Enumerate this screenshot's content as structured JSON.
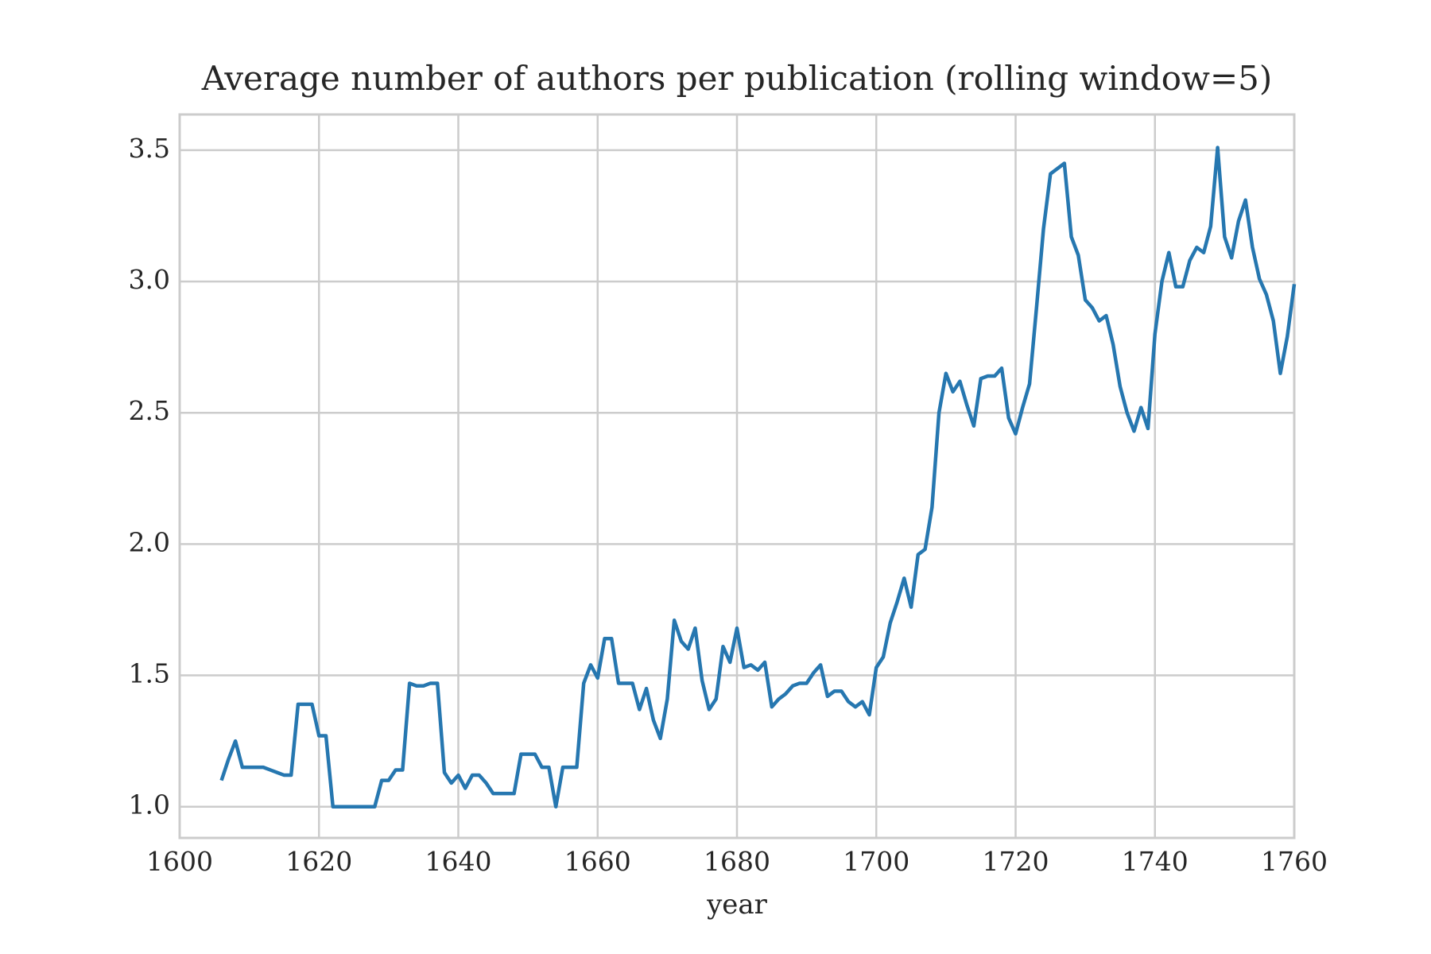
{
  "chart_data": {
    "type": "line",
    "title": "Average number of authors per publication (rolling window=5)",
    "x_label": "year",
    "x": [
      1606,
      1607,
      1608,
      1609,
      1610,
      1611,
      1612,
      1613,
      1614,
      1615,
      1616,
      1617,
      1618,
      1619,
      1620,
      1621,
      1622,
      1623,
      1624,
      1625,
      1626,
      1627,
      1628,
      1629,
      1630,
      1631,
      1632,
      1633,
      1634,
      1635,
      1636,
      1637,
      1638,
      1639,
      1640,
      1641,
      1642,
      1643,
      1644,
      1645,
      1646,
      1647,
      1648,
      1649,
      1650,
      1651,
      1652,
      1653,
      1654,
      1655,
      1656,
      1657,
      1658,
      1659,
      1660,
      1661,
      1662,
      1663,
      1664,
      1665,
      1666,
      1667,
      1668,
      1669,
      1670,
      1671,
      1672,
      1673,
      1674,
      1675,
      1676,
      1677,
      1678,
      1679,
      1680,
      1681,
      1682,
      1683,
      1684,
      1685,
      1686,
      1687,
      1688,
      1689,
      1690,
      1691,
      1692,
      1693,
      1694,
      1695,
      1696,
      1697,
      1698,
      1699,
      1700,
      1701,
      1702,
      1703,
      1704,
      1705,
      1706,
      1707,
      1708,
      1709,
      1710,
      1711,
      1712,
      1713,
      1714,
      1715,
      1716,
      1717,
      1718,
      1719,
      1720,
      1721,
      1722,
      1723,
      1724,
      1725,
      1726,
      1727,
      1728,
      1729,
      1730,
      1731,
      1732,
      1733,
      1734,
      1735,
      1736,
      1737,
      1738,
      1739,
      1740,
      1741,
      1742,
      1743,
      1744,
      1745,
      1746,
      1747,
      1748,
      1749,
      1750,
      1751,
      1752,
      1753,
      1754,
      1755,
      1756,
      1757,
      1758,
      1759,
      1760
    ],
    "series": [
      {
        "color": "#2677b0",
        "values": [
          1.1,
          1.18,
          1.25,
          1.15,
          1.15,
          1.15,
          1.15,
          1.14,
          1.13,
          1.12,
          1.12,
          1.39,
          1.39,
          1.39,
          1.27,
          1.27,
          1.0,
          1.0,
          1.0,
          1.0,
          1.0,
          1.0,
          1.0,
          1.1,
          1.1,
          1.14,
          1.14,
          1.47,
          1.46,
          1.46,
          1.47,
          1.47,
          1.13,
          1.09,
          1.12,
          1.07,
          1.12,
          1.12,
          1.09,
          1.05,
          1.05,
          1.05,
          1.05,
          1.2,
          1.2,
          1.2,
          1.15,
          1.15,
          1.0,
          1.15,
          1.15,
          1.15,
          1.47,
          1.54,
          1.49,
          1.64,
          1.64,
          1.47,
          1.47,
          1.47,
          1.37,
          1.45,
          1.33,
          1.26,
          1.41,
          1.71,
          1.63,
          1.6,
          1.68,
          1.48,
          1.37,
          1.41,
          1.61,
          1.55,
          1.68,
          1.53,
          1.54,
          1.52,
          1.55,
          1.38,
          1.41,
          1.43,
          1.46,
          1.47,
          1.47,
          1.51,
          1.54,
          1.42,
          1.44,
          1.44,
          1.4,
          1.38,
          1.4,
          1.35,
          1.53,
          1.57,
          1.7,
          1.78,
          1.87,
          1.76,
          1.96,
          1.98,
          2.14,
          2.5,
          2.65,
          2.58,
          2.62,
          2.53,
          2.45,
          2.63,
          2.64,
          2.64,
          2.67,
          2.48,
          2.42,
          2.52,
          2.61,
          2.9,
          3.2,
          3.41,
          3.43,
          3.45,
          3.17,
          3.1,
          2.93,
          2.9,
          2.85,
          2.87,
          2.76,
          2.6,
          2.5,
          2.43,
          2.52,
          2.44,
          2.8,
          3.0,
          3.11,
          2.98,
          2.98,
          3.08,
          3.13,
          3.11,
          3.21,
          3.51,
          3.17,
          3.09,
          3.23,
          3.31,
          3.13,
          3.01,
          2.95,
          2.85,
          2.65,
          2.79,
          2.99
        ]
      }
    ],
    "xlim": [
      1600,
      1760
    ],
    "xticks": [
      1600,
      1620,
      1640,
      1660,
      1680,
      1700,
      1720,
      1740,
      1760
    ],
    "ylim": [
      0.881,
      3.636
    ],
    "yticks": [
      {
        "value": 1,
        "label": "1.0"
      },
      1.5,
      {
        "value": 2,
        "label": "2.0"
      },
      2.5,
      {
        "value": 3,
        "label": "3.0"
      },
      3.5
    ],
    "grid": true
  }
}
